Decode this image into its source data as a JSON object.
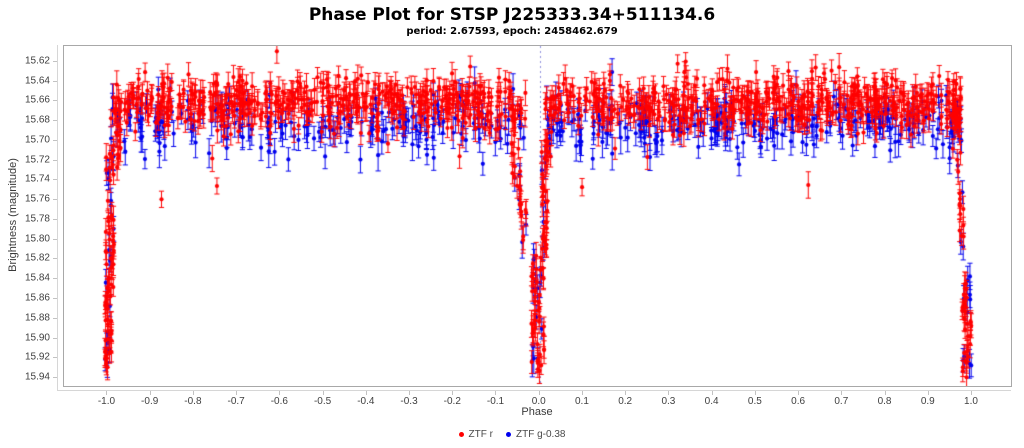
{
  "chart_data": {
    "type": "scatter",
    "title": "Phase Plot for STSP J225333.34+511134.6",
    "subtitle": "period: 2.67593, epoch: 2458462.679",
    "xlabel": "Phase",
    "ylabel": "Brightness (magnitude)",
    "xlim": [
      -1.1005,
      1.0902
    ],
    "ylim": [
      15.604,
      15.948
    ],
    "y_axis_inverted": true,
    "grid": false,
    "x_tick_labels": [
      "-1.0",
      "-0.9",
      "-0.8",
      "-0.7",
      "-0.6",
      "-0.5",
      "-0.4",
      "-0.3",
      "-0.2",
      "-0.1",
      "0.0",
      "0.1",
      "0.2",
      "0.3",
      "0.4",
      "0.5",
      "0.6",
      "0.7",
      "0.8",
      "0.9",
      "1.0"
    ],
    "y_tick_labels": [
      "15.62",
      "15.64",
      "15.66",
      "15.68",
      "15.70",
      "15.72",
      "15.74",
      "15.76",
      "15.78",
      "15.80",
      "15.82",
      "15.84",
      "15.86",
      "15.88",
      "15.90",
      "15.92",
      "15.94"
    ],
    "zero_line": {
      "x": 0.0,
      "color": "#8f8fdd",
      "dash": [
        2,
        3
      ]
    },
    "legend": {
      "position": "bottom-center",
      "entries": [
        {
          "label": "ZTF r",
          "color": "#ff0000"
        },
        {
          "label": "ZTF g-0.38",
          "color": "#0000ee"
        }
      ]
    },
    "series": [
      {
        "name": "ZTF r",
        "color": "#ff0000",
        "marker": "circle",
        "error_bars": true
      },
      {
        "name": "ZTF g-0.38",
        "color": "#0000ee",
        "marker": "circle",
        "error_bars": true
      }
    ],
    "description": "Phase-folded eclipsing-binary light curve. Out-of-eclipse band near mag 15.66-15.68 spanning phases -0.98 to 0.98; deep narrow eclipses at phases -1.0, 0.0 and +1.0 descending to mag ~15.94; magnitude axis inverted (brighter up).",
    "generator": {
      "seed": 20221,
      "marker_radius": 2.1,
      "cap_half_width": 2.6,
      "band": {
        "x_range": [
          -0.982,
          0.976
        ],
        "gap": [
          -0.03,
          0.0195
        ],
        "red": {
          "n": 1050,
          "mean": 15.662,
          "sigma": 0.0135
        },
        "blue": {
          "n": 470,
          "mean": 15.683,
          "sigma": 0.0135
        }
      },
      "err": {
        "red": {
          "base": 0.008,
          "spread": 0.006
        },
        "blue": {
          "base": 0.0095,
          "spread": 0.007
        }
      },
      "outliers": {
        "red": {
          "n": 9,
          "m_range": [
            15.705,
            15.76
          ]
        },
        "blue": {
          "n": 3,
          "m_range": [
            15.705,
            15.735
          ]
        }
      },
      "clusters": [
        {
          "x": [
            -1.006,
            -0.99
          ],
          "m": [
            15.855,
            15.928
          ],
          "n_r": 26,
          "n_b": 7
        },
        {
          "x": [
            -1.004,
            -0.985
          ],
          "m": [
            15.705,
            15.86
          ],
          "n_r": 38,
          "n_b": 10
        },
        {
          "x": [
            -0.992,
            -0.97
          ],
          "m": [
            15.655,
            15.725
          ],
          "n_r": 16,
          "n_b": 5
        },
        {
          "x": [
            -0.065,
            -0.044
          ],
          "m": [
            15.695,
            15.757
          ],
          "n_r": 12,
          "n_b": 3
        },
        {
          "x": [
            -0.049,
            -0.031
          ],
          "m": [
            15.757,
            15.812
          ],
          "n_r": 9,
          "n_b": 3
        },
        {
          "x": [
            -0.022,
            0.011
          ],
          "m": [
            15.815,
            15.933
          ],
          "n_r": 42,
          "n_b": 13
        },
        {
          "x": [
            0.004,
            0.018
          ],
          "m": [
            15.7,
            15.82
          ],
          "n_r": 26,
          "n_b": 6
        },
        {
          "x": [
            0.012,
            0.028
          ],
          "m": [
            15.66,
            15.72
          ],
          "n_r": 14,
          "n_b": 4
        },
        {
          "x": [
            0.953,
            0.974
          ],
          "m": [
            15.66,
            15.727
          ],
          "n_r": 16,
          "n_b": 5
        },
        {
          "x": [
            0.969,
            0.982
          ],
          "m": [
            15.748,
            15.812
          ],
          "n_r": 10,
          "n_b": 3
        },
        {
          "x": [
            0.977,
            0.999
          ],
          "m": [
            15.835,
            15.94
          ],
          "n_r": 30,
          "n_b": 10
        }
      ]
    }
  }
}
